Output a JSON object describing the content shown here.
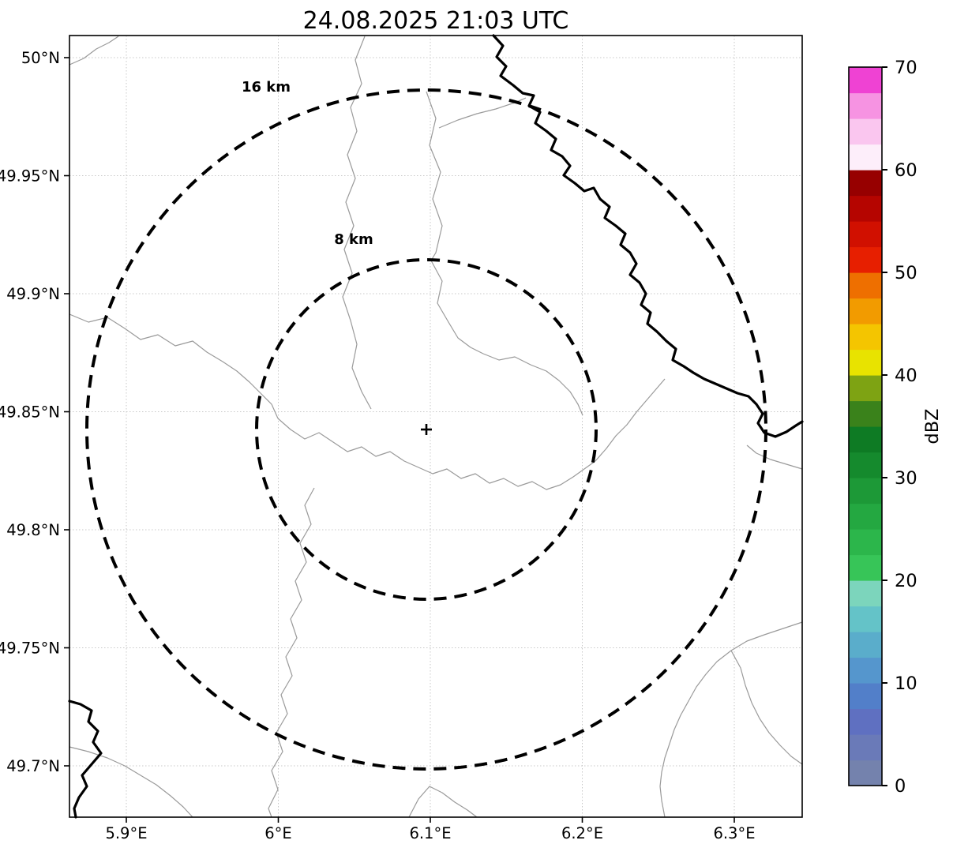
{
  "title": "24.08.2025 21:03 UTC",
  "axes": {
    "x_ticks": [
      "5.9°E",
      "6°E",
      "6.1°E",
      "6.2°E",
      "6.3°E"
    ],
    "y_ticks": [
      "50°N",
      "49.95°N",
      "49.9°N",
      "49.85°N",
      "49.8°N",
      "49.75°N",
      "49.7°N"
    ]
  },
  "rings": {
    "outer_label": "16 km",
    "inner_label": "8 km",
    "center_marker": "+"
  },
  "colorbar": {
    "label": "dBZ",
    "min": 0,
    "max": 70,
    "ticks": [
      0,
      10,
      20,
      30,
      40,
      50,
      60,
      70
    ],
    "colors_bottom_to_top": [
      "#7482ad",
      "#6a7ab8",
      "#5f70c1",
      "#527fc9",
      "#5596cd",
      "#5aadcb",
      "#64c3c8",
      "#7cd5bc",
      "#37c558",
      "#2cb64b",
      "#24a841",
      "#1d9937",
      "#158a2d",
      "#0e7b24",
      "#3a821b",
      "#7ea313",
      "#e8e300",
      "#f4c500",
      "#f29b00",
      "#ee6f00",
      "#e71f00",
      "#d11000",
      "#b50500",
      "#970000",
      "#fdeefa",
      "#fac6ef",
      "#f693e2",
      "#ef42d3"
    ]
  },
  "chart_data": {
    "type": "heatmap",
    "title": "24.08.2025 21:03 UTC",
    "xlabel": "",
    "ylabel": "",
    "x_tick_labels": [
      "5.9°E",
      "6°E",
      "6.1°E",
      "6.2°E",
      "6.3°E"
    ],
    "y_tick_labels": [
      "50°N",
      "49.95°N",
      "49.9°N",
      "49.85°N",
      "49.8°N",
      "49.75°N",
      "49.7°N"
    ],
    "xlim": [
      "5.86°E",
      "6.34°E"
    ],
    "ylim": [
      "49.68°N",
      "50.01°N"
    ],
    "grid": true,
    "colorbar": {
      "label": "dBZ",
      "min": 0,
      "max": 70,
      "ticks": [
        0,
        10,
        20,
        30,
        40,
        50,
        60,
        70
      ]
    },
    "radar_site_center_approx": {
      "lon": "6.1°E",
      "lat": "49.843°N"
    },
    "range_rings_km": [
      8,
      16
    ],
    "values": "no reflectivity echoes shown (empty radar field over base map)"
  }
}
